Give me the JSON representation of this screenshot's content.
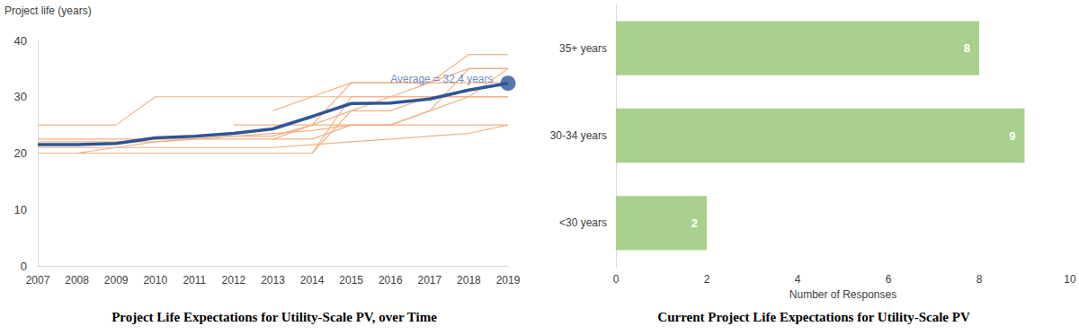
{
  "chart_data": [
    {
      "type": "line",
      "title": "Project Life Expectations for Utility-Scale PV, over Time",
      "y_label": "Project life (years)",
      "categories": [
        "2007",
        "2008",
        "2009",
        "2010",
        "2011",
        "2012",
        "2013",
        "2014",
        "2015",
        "2016",
        "2017",
        "2018",
        "2019"
      ],
      "series": [
        {
          "color": "#f4b183",
          "values": [
            25,
            25,
            25,
            30,
            30,
            30,
            30,
            30,
            32.5,
            32.5,
            32.5,
            35,
            35
          ]
        },
        {
          "color": "#f4b183",
          "values": [
            22,
            22,
            22,
            22,
            22.5,
            23,
            23,
            25,
            25,
            25,
            25,
            25,
            25
          ]
        },
        {
          "color": "#f4b183",
          "values": [
            20,
            20,
            20,
            20,
            20,
            20,
            20,
            20,
            27.5,
            27.5,
            30,
            30,
            30
          ]
        },
        {
          "color": "#f4b183",
          "values": [
            null,
            20,
            21,
            22,
            22.5,
            23,
            23.5,
            24,
            25,
            25,
            27.5,
            30,
            30
          ]
        },
        {
          "color": "#f4b183",
          "values": [
            21,
            21,
            21,
            21,
            21,
            21,
            21,
            21.5,
            22,
            22.5,
            23,
            23.5,
            25
          ]
        },
        {
          "color": "#f4b183",
          "values": [
            20,
            20,
            20,
            20,
            20,
            20,
            20,
            20,
            30,
            30,
            30,
            30,
            35
          ]
        },
        {
          "color": "#f4b183",
          "values": [
            null,
            null,
            null,
            null,
            null,
            25,
            25,
            25,
            32.5,
            32.5,
            32.5,
            32.5,
            32.5
          ]
        },
        {
          "color": "#f4b183",
          "values": [
            null,
            null,
            null,
            null,
            null,
            null,
            22.5,
            25,
            27.5,
            30,
            32.5,
            37.5,
            37.5
          ]
        },
        {
          "color": "#f4b183",
          "values": [
            22.5,
            22.5,
            22.5,
            22.5,
            22.5,
            22.5,
            22.5,
            22.5,
            25,
            25,
            27.5,
            35,
            35
          ]
        },
        {
          "color": "#f4b183",
          "values": [
            null,
            null,
            null,
            null,
            null,
            null,
            27.5,
            30,
            30,
            30,
            30,
            30,
            30
          ]
        },
        {
          "color": "#2f5597",
          "values": [
            21.5,
            21.5,
            21.7,
            22.7,
            23.0,
            23.5,
            24.3,
            26.5,
            28.8,
            28.9,
            29.6,
            31.2,
            32.4
          ]
        }
      ],
      "marker": "none",
      "ylim": [
        0,
        40
      ],
      "yticks": [
        0,
        10,
        20,
        30,
        40
      ],
      "grid": false,
      "annotations": [
        {
          "text": "Average = 32.4 years",
          "x": "2019",
          "y": 32.4
        }
      ]
    },
    {
      "type": "bar",
      "orientation": "horizontal",
      "title": "Current Project Life Expectations for Utility-Scale PV",
      "x_label": "Number of Responses",
      "categories": [
        "<30 years",
        "30-34 years",
        "35+ years"
      ],
      "values": [
        2,
        9,
        8
      ],
      "color": "#a9d18e",
      "xlim": [
        0,
        10
      ],
      "xticks": [
        0,
        2,
        4,
        6,
        8,
        10
      ],
      "data_labels": true,
      "grid": false
    }
  ]
}
